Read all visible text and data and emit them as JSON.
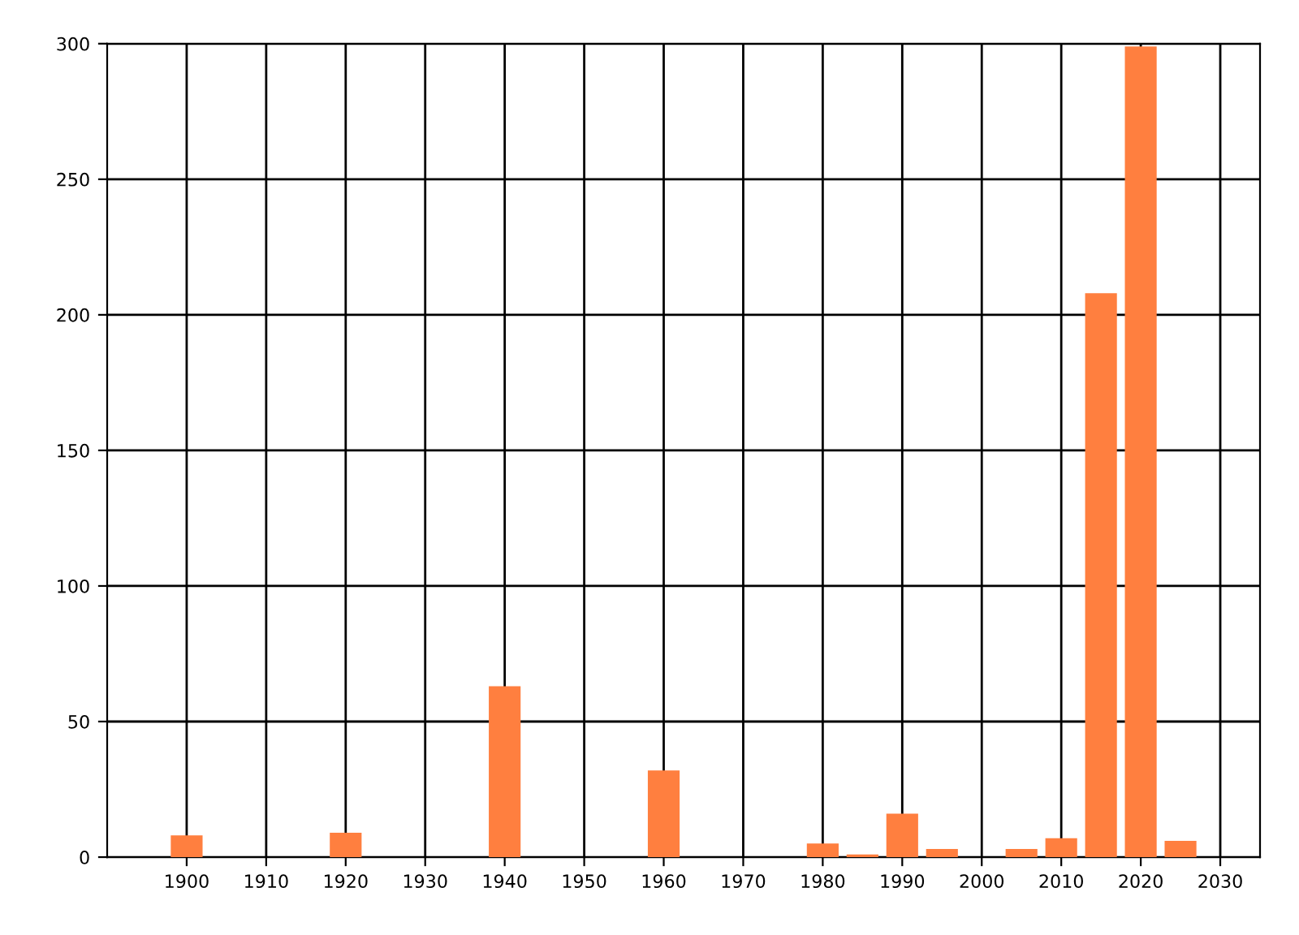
{
  "chart_data": {
    "type": "bar",
    "x": [
      1900,
      1920,
      1940,
      1960,
      1980,
      1985,
      1990,
      1995,
      2005,
      2010,
      2015,
      2020,
      2025
    ],
    "values": [
      8,
      9,
      63,
      32,
      5,
      1,
      16,
      3,
      3,
      7,
      208,
      299,
      6
    ],
    "color": "#ff7f3f",
    "xlim": [
      1890,
      2035
    ],
    "xticks": [
      1900,
      1910,
      1920,
      1930,
      1940,
      1950,
      1960,
      1970,
      1980,
      1990,
      2000,
      2010,
      2020,
      2030
    ],
    "ylim": [
      0,
      300
    ],
    "yticks": [
      0,
      50,
      100,
      150,
      200,
      250,
      300
    ],
    "grid": true
  }
}
